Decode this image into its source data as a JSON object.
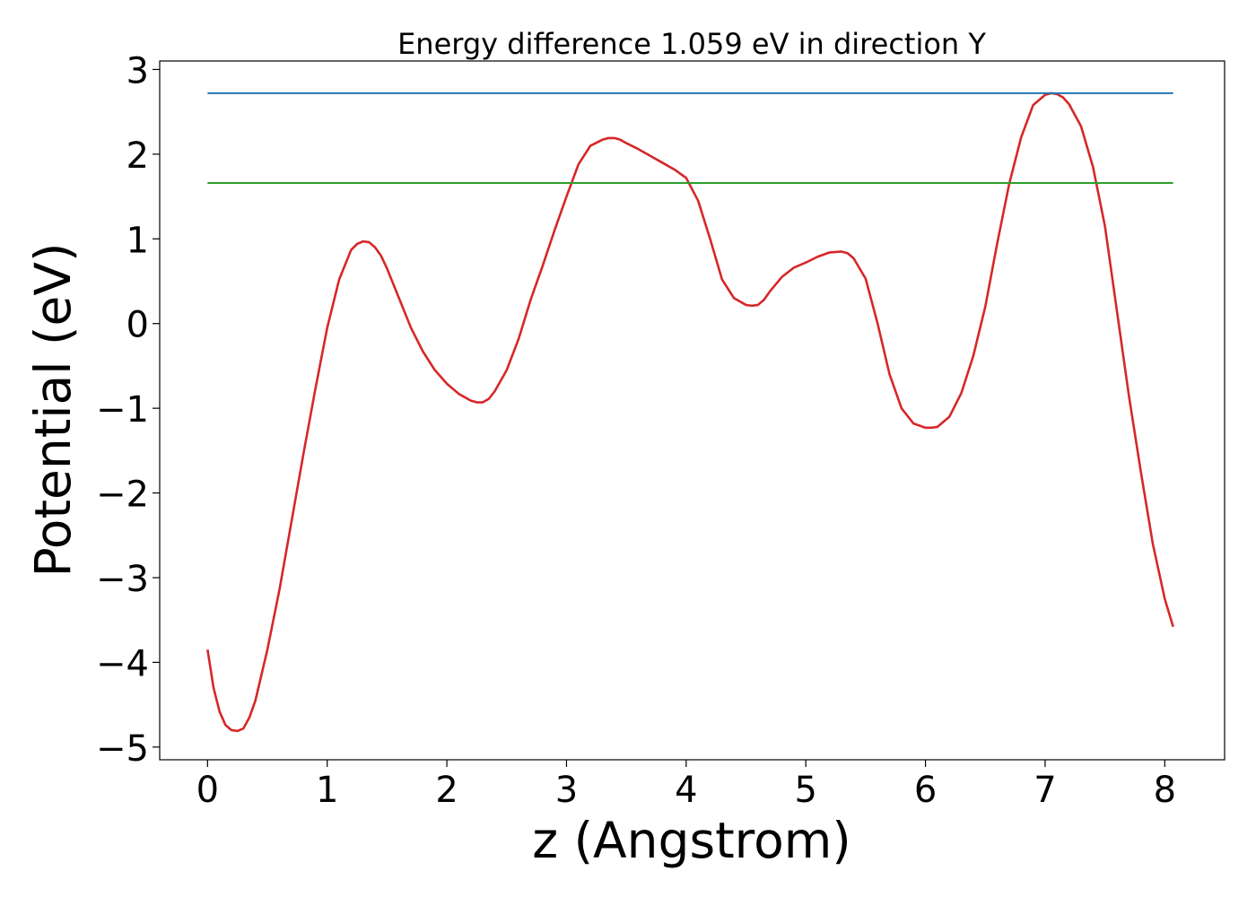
{
  "chart_data": {
    "type": "line",
    "title": "Energy difference 1.059 eV in direction Y",
    "xlabel": "z (Angstrom)",
    "ylabel": "Potential (eV)",
    "xlim": [
      -0.4,
      8.5
    ],
    "ylim": [
      -5.15,
      3.1
    ],
    "xticks": [
      0,
      1,
      2,
      3,
      4,
      5,
      6,
      7,
      8
    ],
    "yticks": [
      -5,
      -4,
      -3,
      -2,
      -1,
      0,
      1,
      2,
      3
    ],
    "x_tick_labels": [
      "0",
      "1",
      "2",
      "3",
      "4",
      "5",
      "6",
      "7",
      "8"
    ],
    "y_tick_labels": [
      "−5",
      "−4",
      "−3",
      "−2",
      "−1",
      "0",
      "1",
      "2",
      "3"
    ],
    "grid": false,
    "series": [
      {
        "color": "#d62728",
        "x": [
          0.0,
          0.05,
          0.1,
          0.15,
          0.2,
          0.25,
          0.3,
          0.35,
          0.4,
          0.45,
          0.5,
          0.6,
          0.7,
          0.8,
          0.9,
          1.0,
          1.1,
          1.2,
          1.25,
          1.3,
          1.35,
          1.4,
          1.45,
          1.5,
          1.6,
          1.7,
          1.8,
          1.9,
          2.0,
          2.1,
          2.2,
          2.25,
          2.3,
          2.35,
          2.4,
          2.5,
          2.6,
          2.7,
          2.8,
          2.9,
          3.0,
          3.1,
          3.2,
          3.3,
          3.35,
          3.4,
          3.45,
          3.5,
          3.6,
          3.7,
          3.8,
          3.9,
          4.0,
          4.1,
          4.2,
          4.3,
          4.4,
          4.5,
          4.55,
          4.6,
          4.65,
          4.7,
          4.8,
          4.9,
          5.0,
          5.1,
          5.2,
          5.3,
          5.35,
          5.4,
          5.5,
          5.6,
          5.7,
          5.8,
          5.9,
          6.0,
          6.05,
          6.1,
          6.2,
          6.3,
          6.4,
          6.5,
          6.6,
          6.7,
          6.8,
          6.9,
          7.0,
          7.05,
          7.1,
          7.15,
          7.2,
          7.3,
          7.4,
          7.5,
          7.6,
          7.7,
          7.8,
          7.9,
          8.0,
          8.07
        ],
        "y": [
          -3.85,
          -4.3,
          -4.58,
          -4.74,
          -4.8,
          -4.81,
          -4.78,
          -4.65,
          -4.45,
          -4.15,
          -3.85,
          -3.15,
          -2.35,
          -1.55,
          -0.78,
          -0.05,
          0.52,
          0.87,
          0.94,
          0.97,
          0.96,
          0.9,
          0.8,
          0.65,
          0.3,
          -0.05,
          -0.33,
          -0.55,
          -0.71,
          -0.83,
          -0.91,
          -0.93,
          -0.93,
          -0.89,
          -0.8,
          -0.55,
          -0.18,
          0.28,
          0.68,
          1.1,
          1.5,
          1.88,
          2.1,
          2.17,
          2.19,
          2.19,
          2.17,
          2.13,
          2.06,
          1.98,
          1.9,
          1.82,
          1.72,
          1.45,
          1.0,
          0.52,
          0.3,
          0.22,
          0.21,
          0.22,
          0.28,
          0.38,
          0.55,
          0.66,
          0.72,
          0.79,
          0.84,
          0.85,
          0.83,
          0.77,
          0.53,
          0.0,
          -0.6,
          -1.0,
          -1.18,
          -1.23,
          -1.23,
          -1.22,
          -1.1,
          -0.82,
          -0.38,
          0.2,
          0.95,
          1.65,
          2.2,
          2.58,
          2.7,
          2.72,
          2.71,
          2.67,
          2.59,
          2.33,
          1.85,
          1.15,
          0.15,
          -0.85,
          -1.75,
          -2.6,
          -3.25,
          -3.58
        ]
      },
      {
        "color": "#1f77b4",
        "x": [
          0.0,
          8.07
        ],
        "y": [
          2.72,
          2.72
        ]
      },
      {
        "color": "#2ca02c",
        "x": [
          0.0,
          8.07
        ],
        "y": [
          1.66,
          1.66
        ]
      }
    ]
  }
}
